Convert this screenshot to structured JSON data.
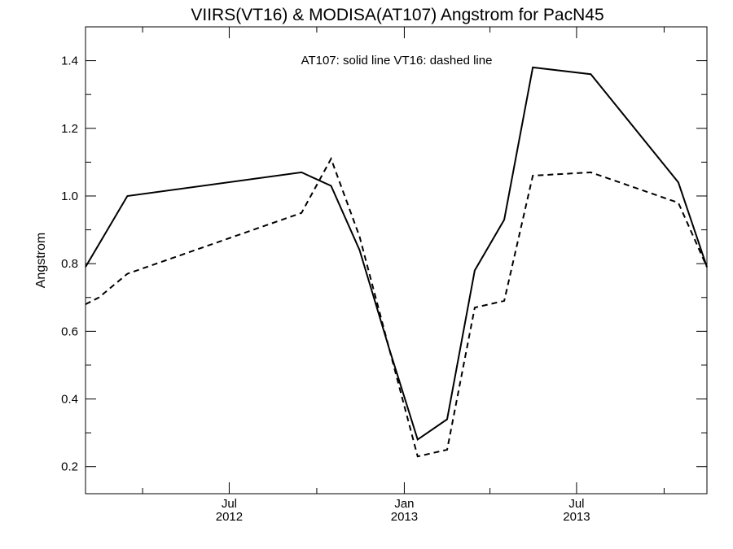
{
  "chart_data": {
    "type": "line",
    "title": "VIIRS(VT16) & MODISA(AT107)  Angstrom for PacN45",
    "ylabel": "Angstrom",
    "xlabel": "",
    "legend_text": "AT107: solid line   VT16: dashed line",
    "x_range": [
      "2012-02-01",
      "2013-11-15"
    ],
    "ylim": [
      0.12,
      1.5
    ],
    "y_ticks": [
      0.2,
      0.4,
      0.6,
      0.8,
      1.0,
      1.2,
      1.4
    ],
    "y_tick_labels": [
      "0.2",
      "0.4",
      "0.6",
      "0.8",
      "1.0",
      "1.2",
      "1.4"
    ],
    "x_tick_labels": [
      {
        "date": "2012-07-01",
        "top": "Jul",
        "bottom": "2012"
      },
      {
        "date": "2013-01-01",
        "top": "Jan",
        "bottom": "2013"
      },
      {
        "date": "2013-07-01",
        "top": "Jul",
        "bottom": "2013"
      }
    ],
    "x_minor_ticks": [
      "2012-04-01",
      "2012-10-01",
      "2013-04-01",
      "2013-10-01"
    ],
    "series": [
      {
        "style": "solid",
        "x": [
          "2012-02-01",
          "2012-03-16",
          "2012-09-15",
          "2012-10-16",
          "2012-11-15",
          "2012-12-16",
          "2013-01-15",
          "2013-02-15",
          "2013-03-16",
          "2013-04-16",
          "2013-05-16",
          "2013-07-16",
          "2013-10-16",
          "2013-11-15"
        ],
        "y": [
          0.79,
          1.0,
          1.07,
          1.03,
          0.84,
          0.55,
          0.28,
          0.34,
          0.78,
          0.93,
          1.38,
          1.36,
          1.04,
          0.79
        ]
      },
      {
        "style": "dashed",
        "x": [
          "2012-02-01",
          "2012-02-15",
          "2012-03-16",
          "2012-09-15",
          "2012-10-16",
          "2012-11-15",
          "2012-12-16",
          "2013-01-15",
          "2013-02-15",
          "2013-03-16",
          "2013-04-16",
          "2013-05-16",
          "2013-07-16",
          "2013-10-16",
          "2013-11-15"
        ],
        "y": [
          0.68,
          0.7,
          0.77,
          0.95,
          1.11,
          0.88,
          0.55,
          0.23,
          0.25,
          0.67,
          0.69,
          1.06,
          1.07,
          0.98,
          0.79
        ]
      }
    ]
  }
}
